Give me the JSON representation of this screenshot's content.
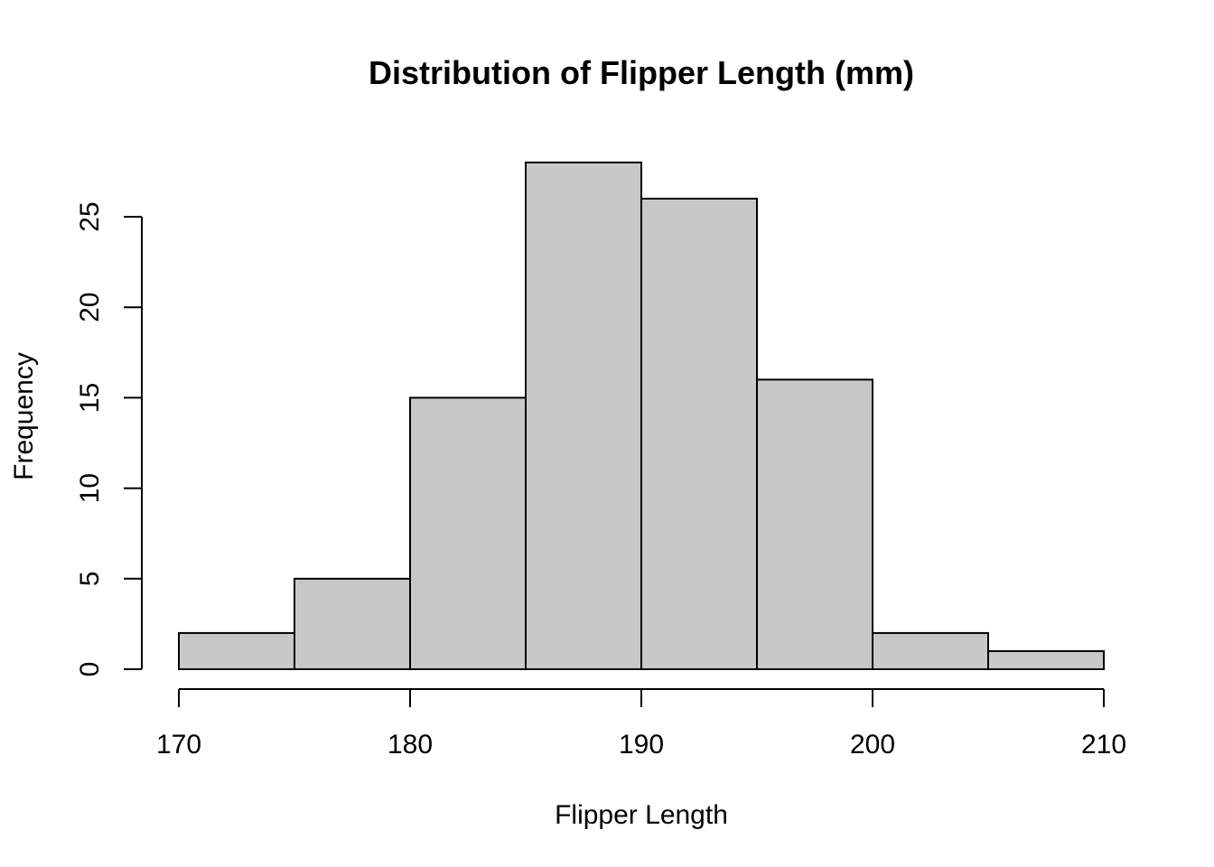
{
  "chart_data": {
    "type": "bar",
    "title": "Distribution of Flipper Length (mm)",
    "xlabel": "Flipper Length",
    "ylabel": "Frequency",
    "bins": [
      {
        "x0": 170,
        "x1": 175,
        "count": 2
      },
      {
        "x0": 175,
        "x1": 180,
        "count": 5
      },
      {
        "x0": 180,
        "x1": 185,
        "count": 15
      },
      {
        "x0": 185,
        "x1": 190,
        "count": 28
      },
      {
        "x0": 190,
        "x1": 195,
        "count": 26
      },
      {
        "x0": 195,
        "x1": 200,
        "count": 16
      },
      {
        "x0": 200,
        "x1": 205,
        "count": 2
      },
      {
        "x0": 205,
        "x1": 210,
        "count": 1
      }
    ],
    "xlim": [
      170,
      210
    ],
    "ylim": [
      0,
      28
    ],
    "x_ticks": [
      "170",
      "180",
      "190",
      "200",
      "210"
    ],
    "y_ticks": [
      "0",
      "5",
      "10",
      "15",
      "20",
      "25"
    ],
    "bar_color": "#c8c8c8",
    "grid": false,
    "legend": "none"
  }
}
